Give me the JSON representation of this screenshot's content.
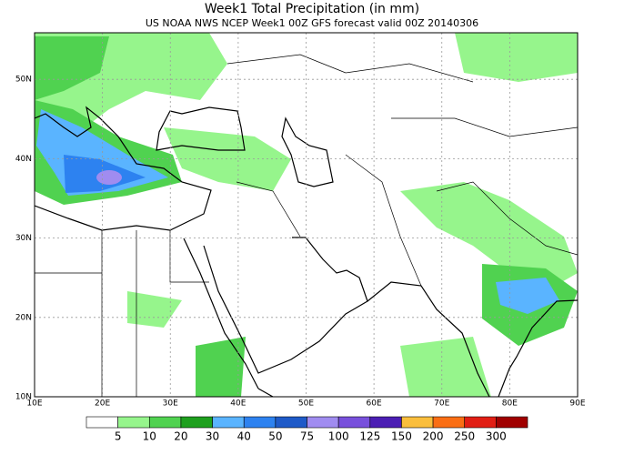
{
  "map": {
    "title": "Week1 Total Precipitation (in mm)",
    "subtitle": "US NOAA NWS NCEP Week1 00Z GFS forecast valid 00Z 20140306",
    "lat_labels": [
      "10N",
      "20N",
      "30N",
      "40N",
      "50N"
    ],
    "lon_labels": [
      "10E",
      "20E",
      "30E",
      "40E",
      "50E",
      "60E",
      "70E",
      "80E",
      "90E"
    ],
    "legend": {
      "colors": [
        "#ffffff",
        "#96f58c",
        "#50d250",
        "#1ea01e",
        "#5ab4ff",
        "#2d82f0",
        "#1e5ac8",
        "#a08cf0",
        "#7850dc",
        "#4b1eb4",
        "#fabe3c",
        "#fa6e14",
        "#e11e14",
        "#a00000"
      ],
      "labels": [
        5,
        10,
        20,
        30,
        40,
        50,
        75,
        100,
        125,
        150,
        200,
        250,
        300
      ]
    }
  }
}
